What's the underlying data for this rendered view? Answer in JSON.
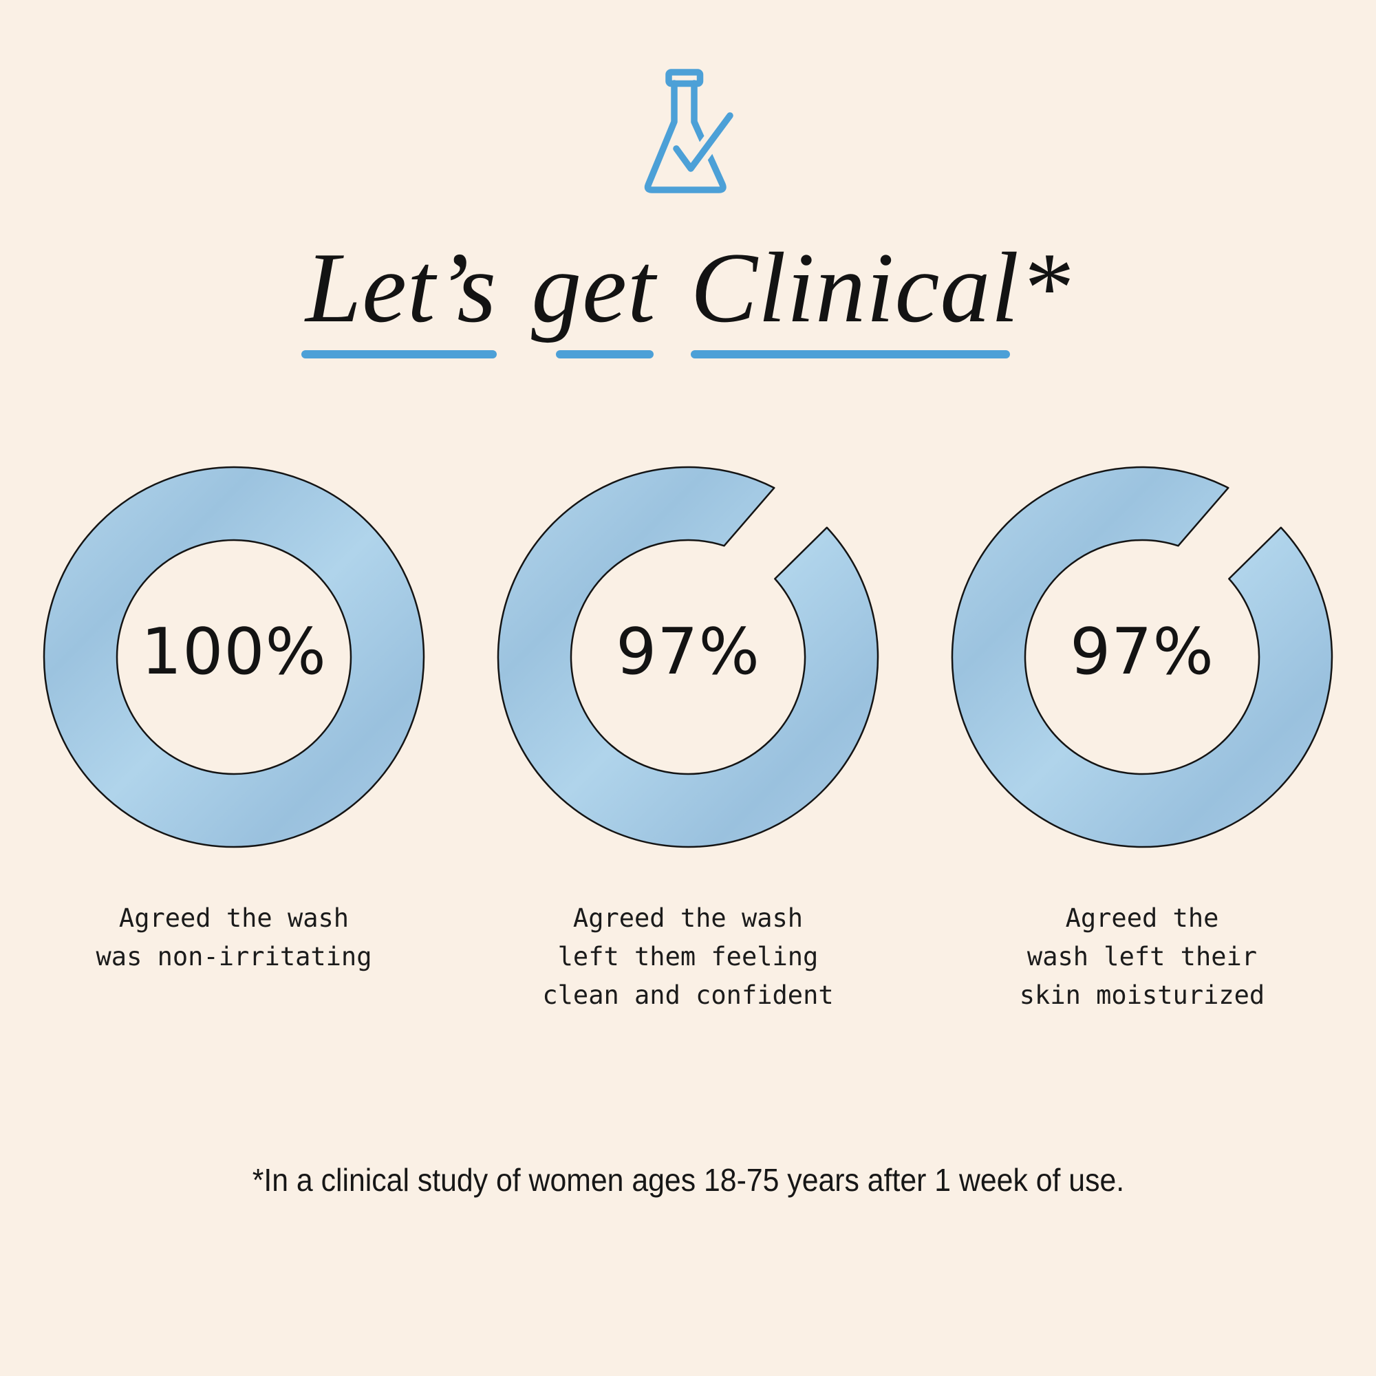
{
  "page": {
    "background_color": "#FAF0E5",
    "accent_blue": "#4CA0D7",
    "ring_blue": "#A6C9E2",
    "text_color": "#161616"
  },
  "header": {
    "icon": "flask-with-checkmark",
    "title_words": [
      "Let’s",
      "get",
      "Clinical*"
    ]
  },
  "chart_data": {
    "type": "pie",
    "subtype": "donut-progress-set",
    "title": "Let’s get Clinical*",
    "series": [
      {
        "value": 100,
        "label": "100%",
        "caption": "Agreed the wash\nwas non-irritating"
      },
      {
        "value": 97,
        "label": "97%",
        "caption": "Agreed the wash\nleft them feeling\nclean and confident"
      },
      {
        "value": 97,
        "label": "97%",
        "caption": "Agreed the\nwash left their\nskin moisturized"
      }
    ],
    "ring_color": "#A6C9E2",
    "ring_gradient_stops": [
      "#B4D6EC",
      "#9CC3DF",
      "#B0D4EB",
      "#9AC1DE",
      "#A9CCE6"
    ],
    "outline_color": "#141414",
    "legend_position": "none",
    "grid": false,
    "donut_geometry": {
      "cx": 280,
      "cy": 280,
      "outer_r": 276,
      "inner_r": 170
    },
    "gap_geometry": {
      "outer_start": 47,
      "outer_end": 27,
      "inner_start": 48,
      "inner_end": 18
    }
  },
  "footnote": "*In a clinical study of women ages 18-75 years after 1 week of use."
}
